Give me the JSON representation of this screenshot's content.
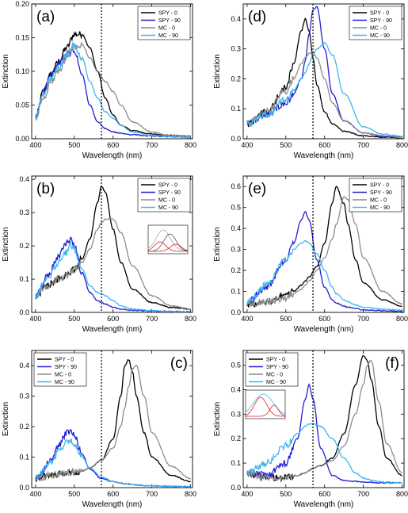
{
  "figure": {
    "xlabel": "Wavelength (nm)",
    "ylabel": "Extinction",
    "vline_nm": 570,
    "series_styles": [
      {
        "name": "SPY - 0",
        "color": "#000000"
      },
      {
        "name": "SPY - 90",
        "color": "#1f1fd6"
      },
      {
        "name": "MC - 0",
        "color": "#8c8c8c"
      },
      {
        "name": "MC - 90",
        "color": "#3fb5ee"
      }
    ]
  },
  "chart_data": [
    {
      "type": "line",
      "panel": "(a)",
      "legend": "top-right",
      "xlim": [
        390,
        805
      ],
      "ylim": [
        0,
        0.2
      ],
      "xticks": [
        400,
        500,
        600,
        700,
        800
      ],
      "yticks": [
        0,
        0.05,
        0.1,
        0.15,
        0.2
      ],
      "ytick_labels": [
        "0.00",
        "0.05",
        "0.10",
        "0.15",
        "0.20"
      ],
      "x": [
        400,
        420,
        440,
        460,
        480,
        500,
        520,
        540,
        560,
        580,
        600,
        620,
        650,
        700,
        750,
        800
      ],
      "series": [
        {
          "name": "SPY - 0",
          "values": [
            0.03,
            0.07,
            0.095,
            0.115,
            0.135,
            0.155,
            0.155,
            0.135,
            0.1,
            0.06,
            0.035,
            0.02,
            0.012,
            0.007,
            0.005,
            0.004
          ]
        },
        {
          "name": "SPY - 90",
          "values": [
            0.03,
            0.07,
            0.095,
            0.11,
            0.125,
            0.13,
            0.095,
            0.05,
            0.025,
            0.015,
            0.01,
            0.008,
            0.006,
            0.004,
            0.003,
            0.002
          ]
        },
        {
          "name": "MC - 0",
          "values": [
            0.03,
            0.06,
            0.085,
            0.1,
            0.12,
            0.135,
            0.14,
            0.12,
            0.1,
            0.085,
            0.07,
            0.05,
            0.025,
            0.01,
            0.005,
            0.004
          ]
        },
        {
          "name": "MC - 90",
          "values": [
            0.03,
            0.065,
            0.09,
            0.105,
            0.125,
            0.14,
            0.12,
            0.085,
            0.06,
            0.04,
            0.03,
            0.02,
            0.01,
            0.005,
            0.003,
            0.002
          ]
        }
      ]
    },
    {
      "type": "line",
      "panel": "(d)",
      "legend": "top-right",
      "xlim": [
        390,
        805
      ],
      "ylim": [
        0,
        0.45
      ],
      "xticks": [
        400,
        500,
        600,
        700,
        800
      ],
      "yticks": [
        0,
        0.1,
        0.2,
        0.3,
        0.4
      ],
      "ytick_labels": [
        "0.0",
        "0.1",
        "0.2",
        "0.3",
        "0.4"
      ],
      "x": [
        400,
        450,
        500,
        520,
        540,
        550,
        560,
        570,
        580,
        600,
        620,
        650,
        700,
        750,
        800
      ],
      "series": [
        {
          "name": "SPY - 0",
          "values": [
            0.05,
            0.09,
            0.17,
            0.25,
            0.36,
            0.4,
            0.36,
            0.27,
            0.18,
            0.09,
            0.05,
            0.025,
            0.01,
            0.006,
            0.004
          ]
        },
        {
          "name": "SPY - 90",
          "values": [
            0.05,
            0.08,
            0.12,
            0.15,
            0.2,
            0.26,
            0.35,
            0.43,
            0.44,
            0.3,
            0.15,
            0.06,
            0.02,
            0.008,
            0.005
          ]
        },
        {
          "name": "MC - 0",
          "values": [
            0.05,
            0.09,
            0.16,
            0.2,
            0.25,
            0.27,
            0.285,
            0.29,
            0.27,
            0.2,
            0.12,
            0.06,
            0.02,
            0.01,
            0.005
          ]
        },
        {
          "name": "MC - 90",
          "values": [
            0.05,
            0.08,
            0.13,
            0.16,
            0.2,
            0.22,
            0.25,
            0.28,
            0.3,
            0.32,
            0.28,
            0.15,
            0.04,
            0.015,
            0.008
          ]
        }
      ]
    },
    {
      "type": "line",
      "panel": "(b)",
      "legend": "top-right",
      "inset": true,
      "xlim": [
        390,
        805
      ],
      "ylim": [
        0,
        0.41
      ],
      "xticks": [
        400,
        500,
        600,
        700,
        800
      ],
      "yticks": [
        0,
        0.1,
        0.2,
        0.3,
        0.4
      ],
      "ytick_labels": [
        "0.0",
        "0.1",
        "0.2",
        "0.3",
        "0.4"
      ],
      "x": [
        400,
        430,
        460,
        480,
        490,
        500,
        520,
        540,
        560,
        570,
        580,
        600,
        620,
        650,
        700,
        750,
        800
      ],
      "series": [
        {
          "name": "SPY - 0",
          "values": [
            0.05,
            0.08,
            0.1,
            0.11,
            0.12,
            0.13,
            0.16,
            0.22,
            0.33,
            0.38,
            0.36,
            0.25,
            0.15,
            0.07,
            0.03,
            0.015,
            0.01
          ]
        },
        {
          "name": "SPY - 90",
          "values": [
            0.05,
            0.11,
            0.17,
            0.21,
            0.22,
            0.2,
            0.12,
            0.06,
            0.035,
            0.03,
            0.025,
            0.015,
            0.01,
            0.006,
            0.004,
            0.003,
            0.002
          ]
        },
        {
          "name": "MC - 0",
          "values": [
            0.05,
            0.08,
            0.1,
            0.11,
            0.12,
            0.13,
            0.15,
            0.19,
            0.25,
            0.27,
            0.28,
            0.28,
            0.24,
            0.14,
            0.05,
            0.02,
            0.01
          ]
        },
        {
          "name": "MC - 90",
          "values": [
            0.05,
            0.1,
            0.15,
            0.18,
            0.2,
            0.19,
            0.13,
            0.08,
            0.06,
            0.055,
            0.05,
            0.035,
            0.02,
            0.01,
            0.005,
            0.003,
            0.002
          ]
        }
      ]
    },
    {
      "type": "line",
      "panel": "(e)",
      "legend": "top-right",
      "xlim": [
        390,
        805
      ],
      "ylim": [
        0,
        0.65
      ],
      "xticks": [
        400,
        500,
        600,
        700,
        800
      ],
      "yticks": [
        0,
        0.1,
        0.2,
        0.3,
        0.4,
        0.5,
        0.6
      ],
      "ytick_labels": [
        "0.0",
        "0.1",
        "0.2",
        "0.3",
        "0.4",
        "0.5",
        "0.6"
      ],
      "x": [
        400,
        450,
        500,
        520,
        540,
        550,
        560,
        580,
        600,
        620,
        630,
        650,
        660,
        680,
        700,
        750,
        800
      ],
      "series": [
        {
          "name": "SPY - 0",
          "values": [
            0.04,
            0.05,
            0.08,
            0.1,
            0.13,
            0.15,
            0.17,
            0.22,
            0.33,
            0.52,
            0.6,
            0.52,
            0.42,
            0.25,
            0.14,
            0.06,
            0.03
          ]
        },
        {
          "name": "SPY - 90",
          "values": [
            0.05,
            0.12,
            0.25,
            0.33,
            0.44,
            0.48,
            0.44,
            0.25,
            0.12,
            0.06,
            0.045,
            0.03,
            0.025,
            0.018,
            0.012,
            0.008,
            0.005
          ]
        },
        {
          "name": "MC - 0",
          "values": [
            0.04,
            0.05,
            0.07,
            0.09,
            0.11,
            0.13,
            0.15,
            0.2,
            0.26,
            0.35,
            0.42,
            0.55,
            0.54,
            0.42,
            0.26,
            0.1,
            0.04
          ]
        },
        {
          "name": "MC - 90",
          "values": [
            0.05,
            0.13,
            0.25,
            0.3,
            0.33,
            0.34,
            0.33,
            0.28,
            0.2,
            0.12,
            0.09,
            0.06,
            0.05,
            0.035,
            0.025,
            0.015,
            0.01
          ]
        }
      ]
    },
    {
      "type": "line",
      "panel": "(c)",
      "legend": "top-left",
      "xlim": [
        390,
        805
      ],
      "ylim": [
        0,
        0.45
      ],
      "xticks": [
        400,
        500,
        600,
        700,
        800
      ],
      "yticks": [
        0,
        0.1,
        0.2,
        0.3,
        0.4
      ],
      "ytick_labels": [
        "0.0",
        "0.1",
        "0.2",
        "0.3",
        "0.4"
      ],
      "x": [
        400,
        440,
        460,
        480,
        490,
        500,
        520,
        540,
        570,
        600,
        620,
        630,
        640,
        650,
        660,
        680,
        700,
        750,
        800
      ],
      "series": [
        {
          "name": "SPY - 0",
          "values": [
            0.03,
            0.04,
            0.045,
            0.05,
            0.05,
            0.05,
            0.055,
            0.065,
            0.09,
            0.16,
            0.3,
            0.4,
            0.42,
            0.38,
            0.3,
            0.18,
            0.1,
            0.04,
            0.02
          ]
        },
        {
          "name": "SPY - 90",
          "values": [
            0.03,
            0.09,
            0.14,
            0.18,
            0.185,
            0.17,
            0.11,
            0.06,
            0.03,
            0.02,
            0.015,
            0.012,
            0.011,
            0.01,
            0.009,
            0.007,
            0.006,
            0.004,
            0.003
          ]
        },
        {
          "name": "MC - 0",
          "values": [
            0.03,
            0.04,
            0.045,
            0.05,
            0.05,
            0.05,
            0.055,
            0.065,
            0.09,
            0.13,
            0.2,
            0.26,
            0.33,
            0.39,
            0.4,
            0.3,
            0.18,
            0.07,
            0.03
          ]
        },
        {
          "name": "MC - 90",
          "values": [
            0.03,
            0.08,
            0.12,
            0.15,
            0.155,
            0.14,
            0.1,
            0.065,
            0.035,
            0.02,
            0.015,
            0.012,
            0.011,
            0.01,
            0.009,
            0.007,
            0.006,
            0.004,
            0.003
          ]
        }
      ]
    },
    {
      "type": "line",
      "panel": "(f)",
      "legend": "top-left",
      "inset": true,
      "xlim": [
        390,
        805
      ],
      "ylim": [
        0,
        0.56
      ],
      "xticks": [
        400,
        500,
        600,
        700,
        800
      ],
      "yticks": [
        0,
        0.1,
        0.2,
        0.3,
        0.4,
        0.5
      ],
      "ytick_labels": [
        "0.0",
        "0.1",
        "0.2",
        "0.3",
        "0.4",
        "0.5"
      ],
      "x": [
        400,
        450,
        500,
        530,
        550,
        560,
        570,
        590,
        620,
        650,
        680,
        700,
        710,
        720,
        740,
        760,
        800
      ],
      "series": [
        {
          "name": "SPY - 0",
          "values": [
            0.06,
            0.04,
            0.04,
            0.05,
            0.06,
            0.07,
            0.08,
            0.09,
            0.12,
            0.22,
            0.42,
            0.54,
            0.52,
            0.44,
            0.25,
            0.12,
            0.05
          ]
        },
        {
          "name": "SPY - 90",
          "values": [
            0.06,
            0.05,
            0.1,
            0.2,
            0.36,
            0.42,
            0.36,
            0.16,
            0.05,
            0.03,
            0.025,
            0.022,
            0.022,
            0.022,
            0.02,
            0.02,
            0.02
          ]
        },
        {
          "name": "MC - 0",
          "values": [
            0.06,
            0.04,
            0.04,
            0.05,
            0.06,
            0.07,
            0.08,
            0.09,
            0.11,
            0.17,
            0.3,
            0.42,
            0.5,
            0.52,
            0.35,
            0.18,
            0.06
          ]
        },
        {
          "name": "MC - 90",
          "values": [
            0.06,
            0.1,
            0.17,
            0.22,
            0.25,
            0.26,
            0.26,
            0.25,
            0.2,
            0.12,
            0.06,
            0.04,
            0.035,
            0.03,
            0.025,
            0.022,
            0.02
          ]
        }
      ]
    }
  ]
}
